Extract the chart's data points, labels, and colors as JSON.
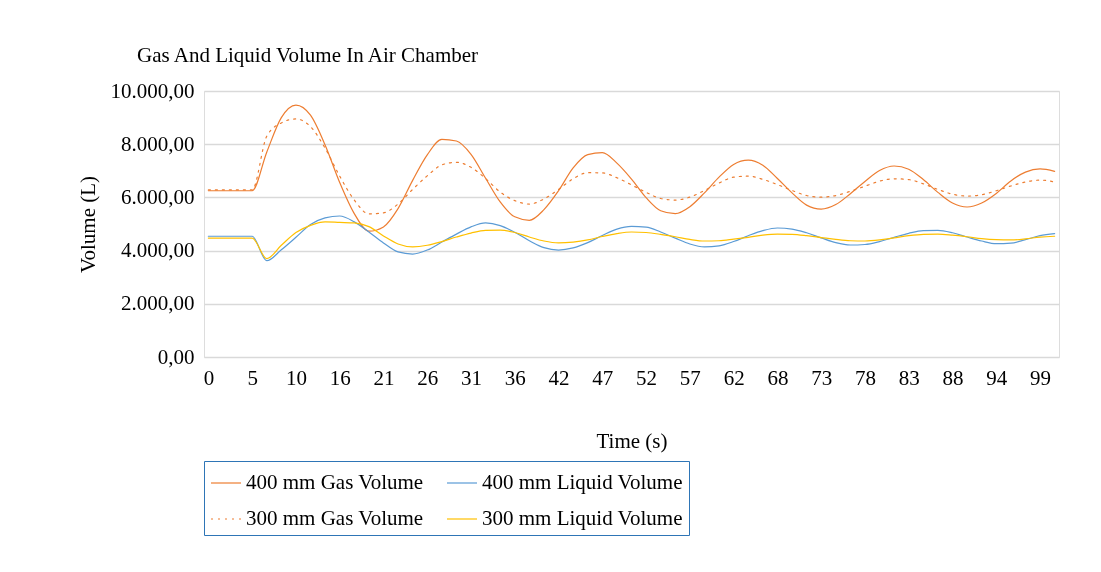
{
  "chart_data": {
    "type": "line",
    "title": "Gas And Liquid Volume In Air Chamber",
    "xlabel": "Time (s)",
    "ylabel": "Volume (L)",
    "categories": [
      "0",
      null,
      null,
      "5",
      null,
      null,
      "10",
      null,
      null,
      "16",
      null,
      null,
      "21",
      null,
      null,
      "26",
      null,
      null,
      "31",
      null,
      null,
      "36",
      null,
      null,
      "42",
      null,
      null,
      "47",
      null,
      null,
      "52",
      null,
      null,
      "57",
      null,
      null,
      "62",
      null,
      null,
      "68",
      null,
      null,
      "73",
      null,
      null,
      "78",
      null,
      null,
      "83",
      null,
      null,
      "88",
      null,
      null,
      "94",
      null,
      null,
      "99",
      null
    ],
    "ylim": [
      0,
      10000
    ],
    "yticks": [
      {
        "value": 0,
        "label": "0,00"
      },
      {
        "value": 2000,
        "label": "2.000,00"
      },
      {
        "value": 4000,
        "label": "4.000,00"
      },
      {
        "value": 6000,
        "label": "6.000,00"
      },
      {
        "value": 8000,
        "label": "8.000,00"
      },
      {
        "value": 10000,
        "label": "10.000,00"
      }
    ],
    "grid": "y",
    "legend": "bottom",
    "marker": "none",
    "series": [
      {
        "name": "400 mm Gas Volume",
        "color": "#ed7d31",
        "line_style": "solid",
        "values": [
          6250,
          6250,
          6250,
          6250,
          7700,
          9000,
          9470,
          9090,
          7970,
          6560,
          5390,
          4730,
          4890,
          5580,
          6640,
          7600,
          8180,
          8120,
          7620,
          6720,
          5830,
          5270,
          5140,
          5540,
          6250,
          7110,
          7610,
          7680,
          7290,
          6690,
          5990,
          5500,
          5390,
          5650,
          6170,
          6760,
          7240,
          7400,
          7210,
          6710,
          6170,
          5710,
          5560,
          5730,
          6140,
          6600,
          7010,
          7180,
          7060,
          6670,
          6190,
          5790,
          5640,
          5790,
          6150,
          6620,
          6950,
          7070,
          6980
        ]
      },
      {
        "name": "400 mm Liquid Volume",
        "color": "#5b9bd5",
        "line_style": "solid",
        "values": [
          4540,
          4540,
          4540,
          4540,
          3620,
          4030,
          4500,
          4980,
          5230,
          5300,
          5080,
          4700,
          4290,
          3950,
          3870,
          4020,
          4320,
          4620,
          4890,
          5040,
          4940,
          4690,
          4370,
          4110,
          4020,
          4100,
          4300,
          4570,
          4810,
          4910,
          4880,
          4700,
          4470,
          4250,
          4140,
          4180,
          4340,
          4560,
          4750,
          4850,
          4810,
          4670,
          4480,
          4300,
          4210,
          4230,
          4340,
          4500,
          4650,
          4750,
          4760,
          4670,
          4510,
          4360,
          4260,
          4280,
          4410,
          4560,
          4640
        ]
      },
      {
        "name": "300 mm Gas Volume",
        "color": "#ed7d31",
        "line_style": "dotted",
        "values": [
          6280,
          6280,
          6280,
          6280,
          8300,
          8800,
          8950,
          8660,
          7850,
          6800,
          5900,
          5380,
          5420,
          5750,
          6300,
          6810,
          7220,
          7320,
          7130,
          6710,
          6200,
          5880,
          5750,
          5940,
          6300,
          6700,
          6930,
          6920,
          6740,
          6470,
          6190,
          5960,
          5900,
          6010,
          6260,
          6540,
          6760,
          6800,
          6680,
          6480,
          6260,
          6070,
          6010,
          6070,
          6230,
          6420,
          6610,
          6700,
          6670,
          6510,
          6300,
          6120,
          6050,
          6100,
          6250,
          6430,
          6580,
          6650,
          6580
        ]
      },
      {
        "name": "300 mm Liquid Volume",
        "color": "#ffc000",
        "line_style": "solid",
        "values": [
          4470,
          4470,
          4470,
          4470,
          3700,
          4200,
          4680,
          4950,
          5080,
          5060,
          5040,
          4900,
          4550,
          4250,
          4140,
          4200,
          4340,
          4510,
          4660,
          4760,
          4770,
          4680,
          4510,
          4360,
          4290,
          4320,
          4400,
          4530,
          4640,
          4700,
          4680,
          4610,
          4520,
          4420,
          4360,
          4370,
          4430,
          4500,
          4580,
          4620,
          4610,
          4560,
          4490,
          4420,
          4370,
          4360,
          4400,
          4480,
          4560,
          4610,
          4620,
          4580,
          4520,
          4450,
          4410,
          4400,
          4440,
          4510,
          4540
        ]
      }
    ]
  }
}
